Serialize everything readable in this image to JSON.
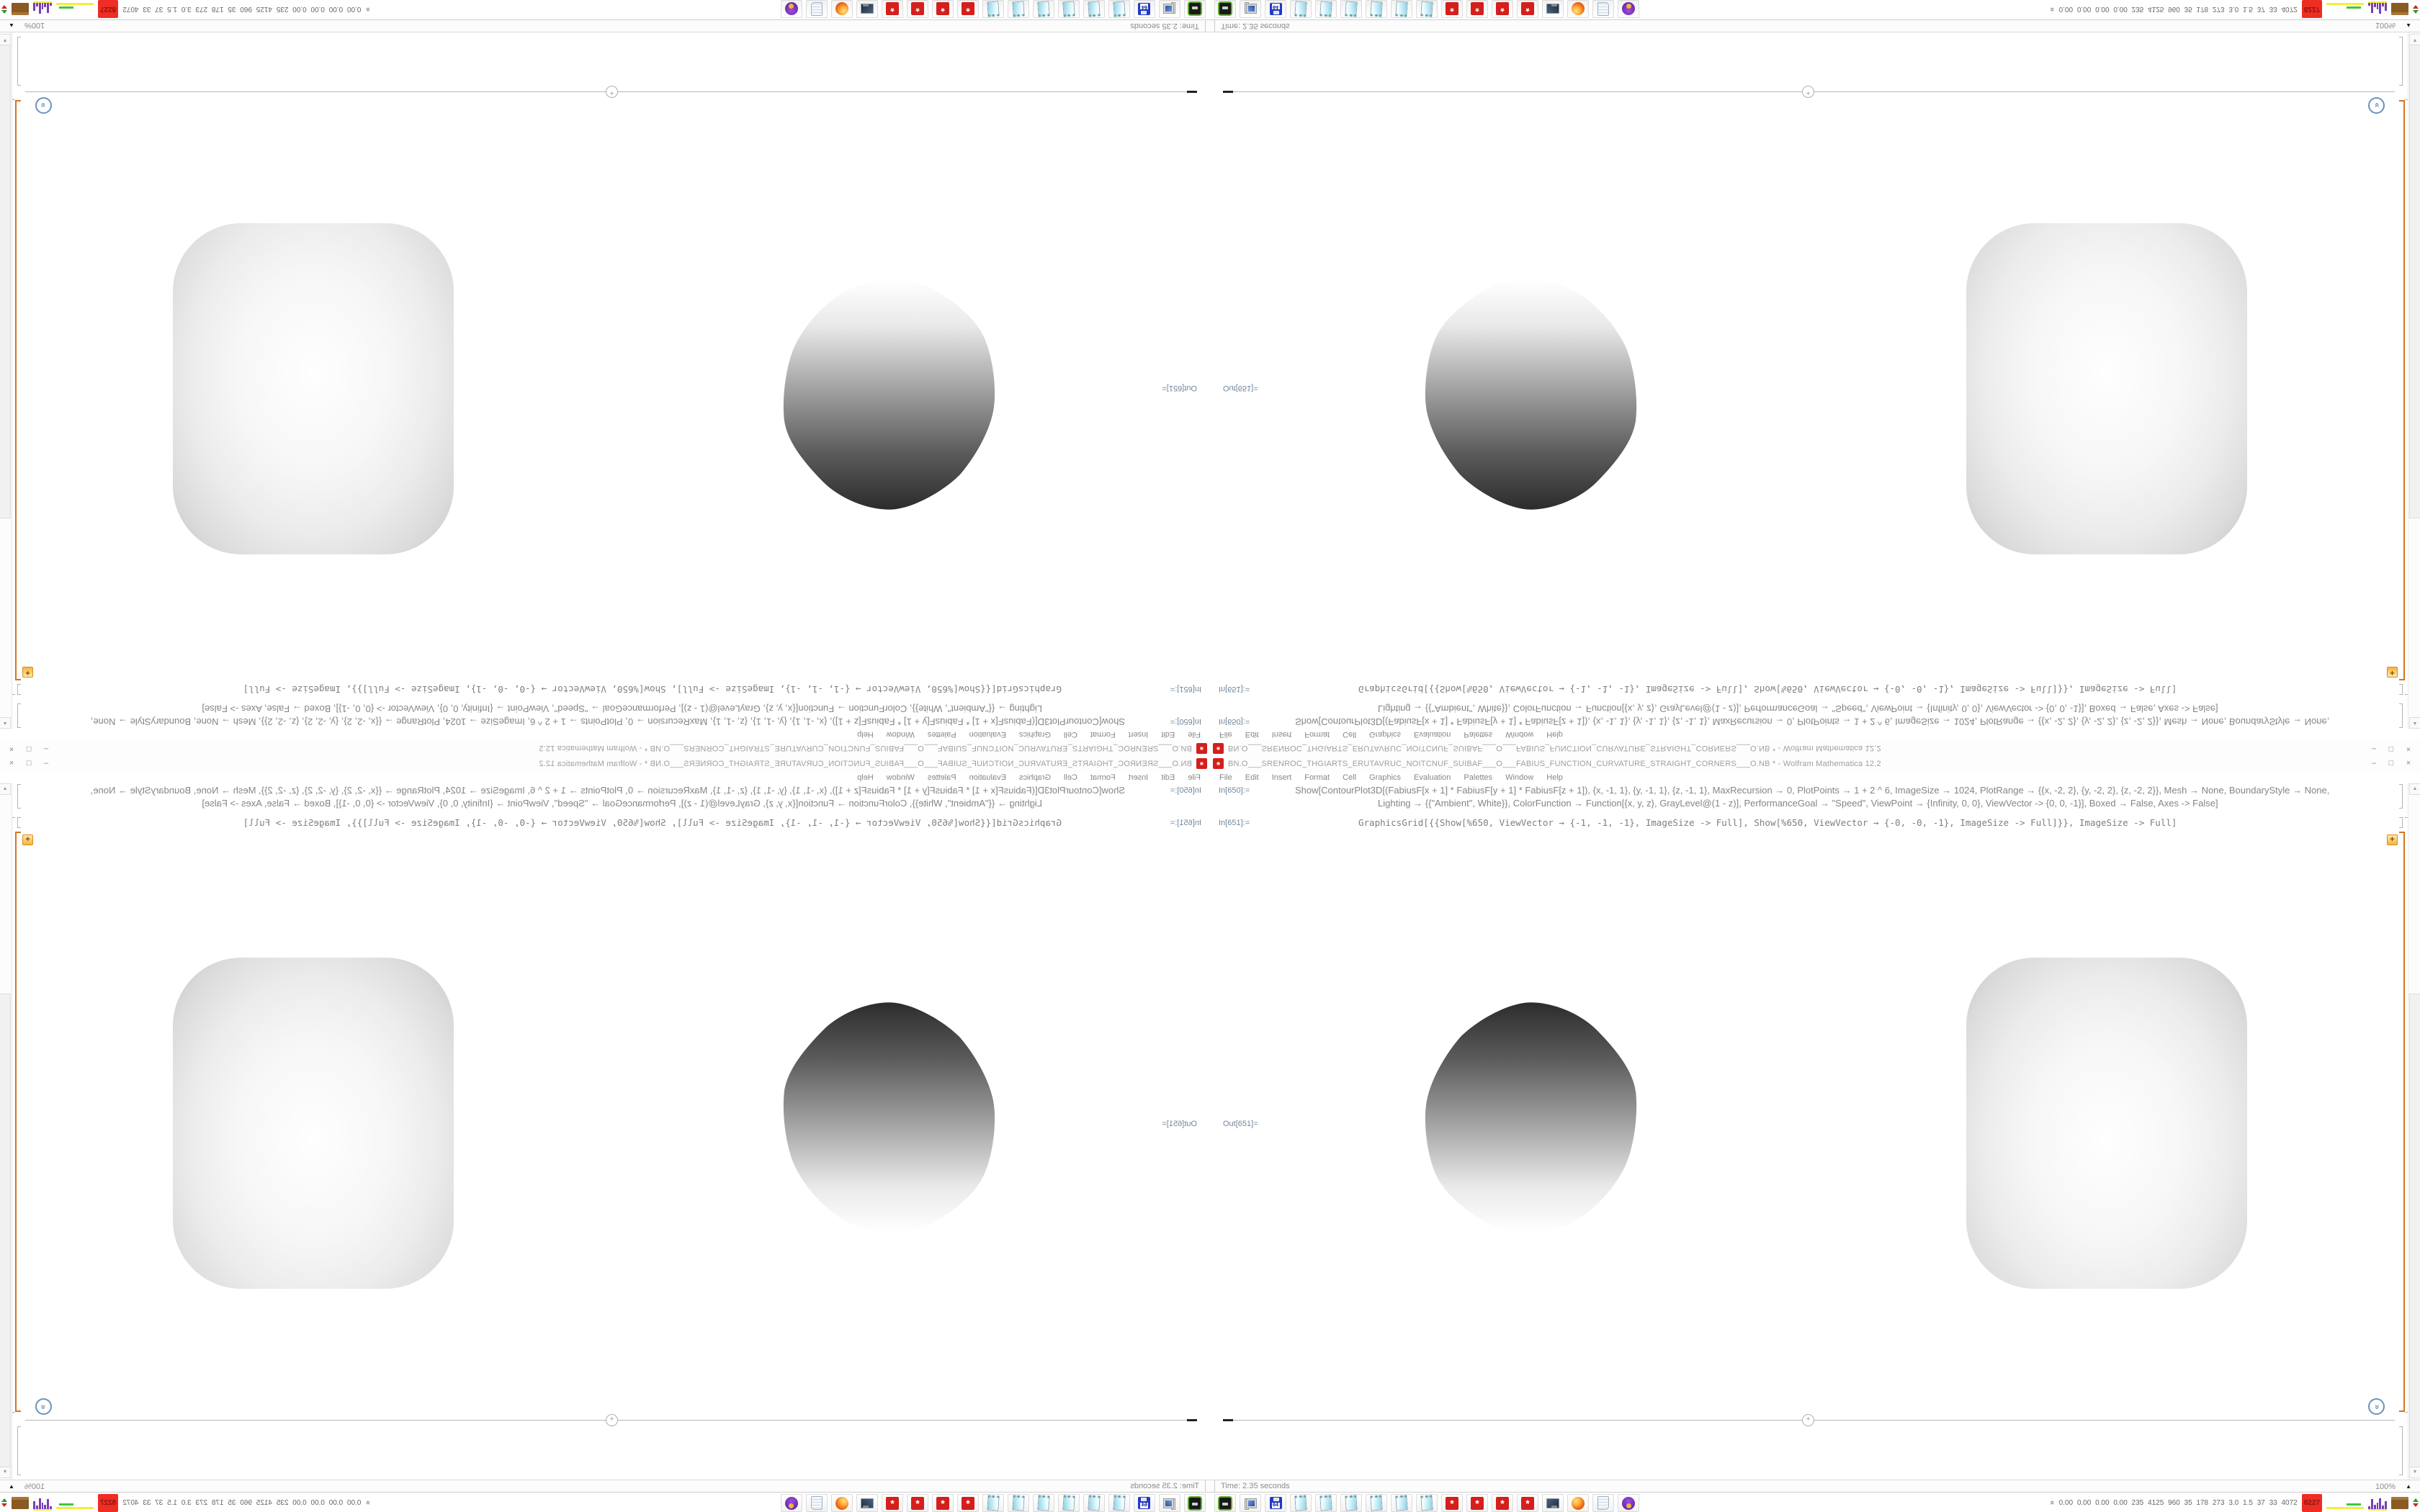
{
  "window": {
    "icon_glyph": "*",
    "title": "BN.O___SRENROC_THGIARTS_ERUTAVRUC_NOITCNUF_SUIBAF___O___FABIUS_FUNCTION_CURVATURE_STRAIGHT_CORNERS___O.NB * - Wolfram Mathematica 12.2",
    "controls": {
      "minimize": "–",
      "restore": "□",
      "close": "×"
    },
    "menu": [
      "File",
      "Edit",
      "Insert",
      "Format",
      "Cell",
      "Graphics",
      "Evaluation",
      "Palettes",
      "Window",
      "Help"
    ]
  },
  "notebook": {
    "in650_label": "In[650]:=",
    "in650_line1": "Show[ContourPlot3D[(FabiusF[x + 1] * FabiusF[y + 1] * FabiusF[z + 1]), {x, -1, 1}, {y, -1, 1}, {z, -1, 1}, MaxRecursion → 0, PlotPoints → 1 + 2 ^ 6, ImageSize → 1024, PlotRange → {{x, -2, 2}, {y, -2, 2}, {z, -2, 2}}, Mesh → None, BoundaryStyle → None,",
    "in650_line2": "Lighting → {{\"Ambient\", White}}, ColorFunction → Function[{x, y, z}, GrayLevel@(1 - z)], PerformanceGoal → \"Speed\", ViewPoint → {Infinity, 0, 0}, ViewVector -> {0, 0, -1}], Boxed → False, Axes -> False]",
    "in651_label": "In[651]:=",
    "in651_code": "GraphicsGrid[{{Show[%650, ViewVector → {-1, -1, -1}, ImageSize -> Full], Show[%650, ViewVector → {-0, -0, -1}, ImageSize -> Full]}}, ImageSize -> Full]",
    "out651_label": "Out[651]=",
    "orange_plus_glyph": "+",
    "insert_plus_glyph": "+",
    "assist_glyph": "«",
    "scroll_up_glyph": "▲",
    "scroll_down_glyph": "▼",
    "accent_orange": "#d4751f"
  },
  "statusbar": {
    "left_text": "Time: 2.35 seconds",
    "zoom_text": "100%",
    "zoom_menu_glyph": "▲"
  },
  "taskbar": {
    "buttons": [
      {
        "icon": "emulator"
      },
      {
        "icon": "computer"
      },
      {
        "icon": "floppy-64",
        "label": "64"
      },
      {
        "icon": "notebook"
      },
      {
        "icon": "notebook"
      },
      {
        "icon": "notebook"
      },
      {
        "icon": "notebook"
      },
      {
        "icon": "notebook"
      },
      {
        "icon": "notebook"
      },
      {
        "icon": "mathematica-spikey",
        "glyph": "*"
      },
      {
        "icon": "mathematica-spikey",
        "glyph": "*"
      },
      {
        "icon": "mathematica-spikey",
        "glyph": "*"
      },
      {
        "icon": "mathematica-spikey",
        "glyph": "*"
      },
      {
        "icon": "display-dark"
      },
      {
        "icon": "firefox"
      },
      {
        "icon": "scroll-doc"
      },
      {
        "icon": "purple-app"
      }
    ],
    "tray": {
      "expander_glyph": "«",
      "load_text": "0.00 0.00 0.00 0.00 235 4125 960 35 178 273 3.0 1.5 37 33 4072",
      "alert_value": "8227",
      "alert_color": "#ee2d23",
      "cpu_history": [
        4,
        14,
        6,
        9,
        15,
        5,
        11
      ]
    }
  }
}
